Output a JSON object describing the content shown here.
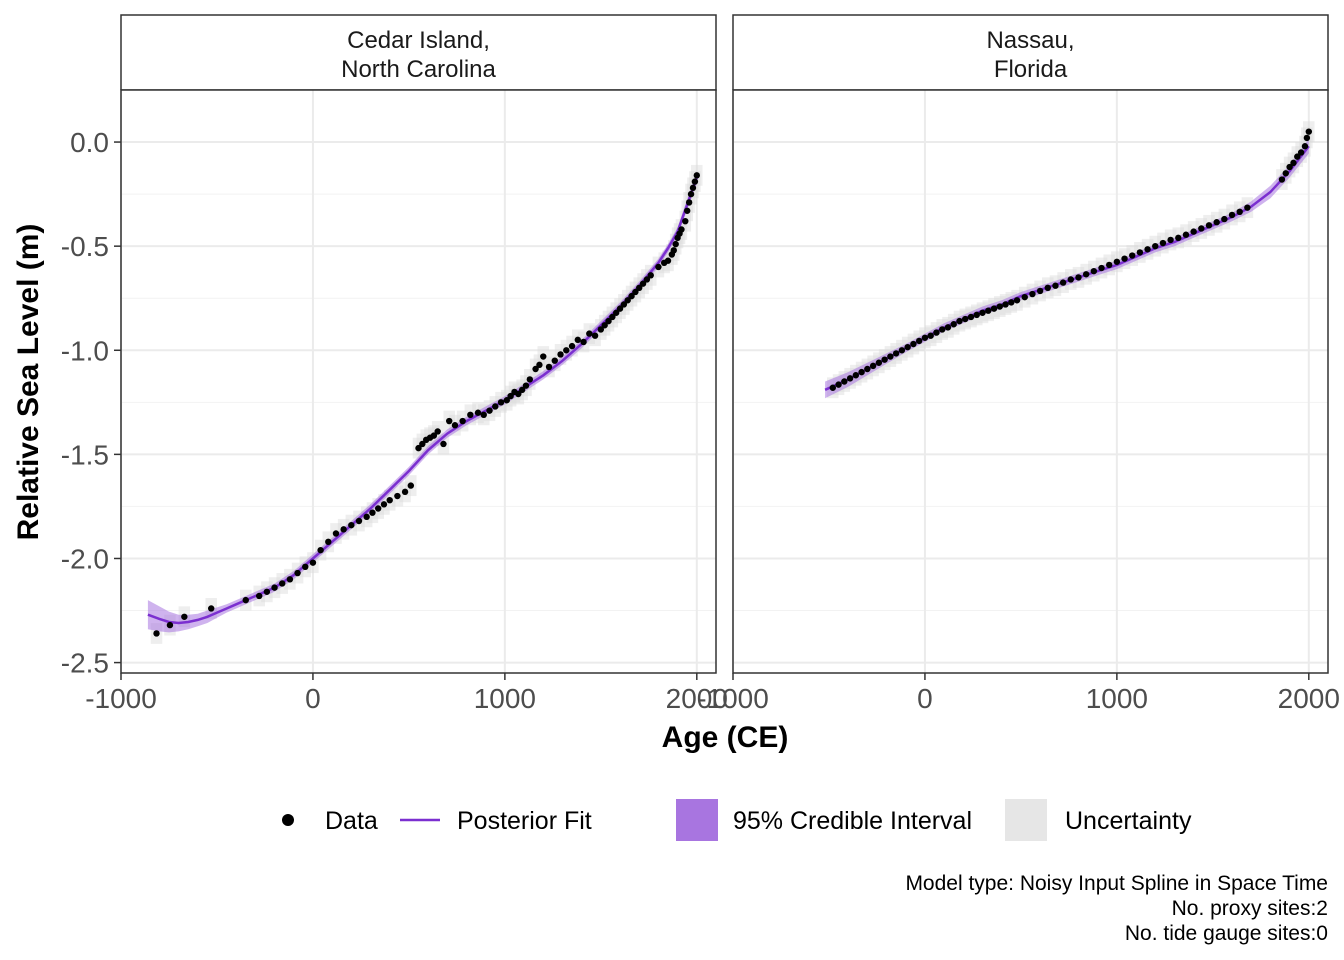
{
  "chart_data": {
    "type": "scatter",
    "xlabel": "Age (CE)",
    "ylabel": "Relative Sea Level (m)",
    "xlim": [
      -1000,
      2100
    ],
    "ylim": [
      -2.55,
      0.25
    ],
    "x_ticks": [
      -1000,
      0,
      1000,
      2000
    ],
    "x_tick_labels": [
      "-1000",
      "0",
      "1000",
      "2000"
    ],
    "y_ticks": [
      0.0,
      -0.5,
      -1.0,
      -1.5,
      -2.0,
      -2.5
    ],
    "y_tick_labels": [
      "0.0",
      "-0.5",
      "-1.0",
      "-1.5",
      "-2.0",
      "-2.5"
    ],
    "grid": true,
    "legend_position": "bottom",
    "legend": [
      {
        "label": "Data",
        "key": "point",
        "color": "#000000"
      },
      {
        "label": "Posterior Fit",
        "key": "line",
        "color": "#7b2fd0"
      },
      {
        "label": "95% Credible Interval",
        "key": "fill",
        "color": "#a875e0"
      },
      {
        "label": "Uncertainty",
        "key": "fill",
        "color": "#e6e6e6"
      }
    ],
    "caption": [
      "Model type: Noisy Input Spline in Space Time ",
      "No. proxy sites:2",
      "No. tide gauge sites:0"
    ],
    "colors": {
      "data": "#000000",
      "fit": "#7b2fd0",
      "ci": "#a875e0",
      "uncertainty": "#d9d9d9"
    },
    "panels": [
      {
        "strip": [
          "Cedar Island,",
          "North Carolina"
        ],
        "data_x": [
          -815,
          -745,
          -670,
          -530,
          -350,
          -280,
          -240,
          -200,
          -160,
          -120,
          -80,
          -40,
          0,
          40,
          80,
          120,
          160,
          200,
          240,
          280,
          310,
          340,
          370,
          400,
          440,
          480,
          510,
          550,
          570,
          590,
          610,
          630,
          650,
          680,
          710,
          740,
          780,
          820,
          860,
          890,
          920,
          950,
          980,
          1010,
          1030,
          1050,
          1070,
          1090,
          1110,
          1130,
          1160,
          1180,
          1200,
          1230,
          1260,
          1290,
          1320,
          1350,
          1380,
          1410,
          1440,
          1470,
          1500,
          1520,
          1540,
          1560,
          1580,
          1600,
          1620,
          1640,
          1660,
          1680,
          1700,
          1720,
          1740,
          1760,
          1800,
          1830,
          1850,
          1870,
          1880,
          1890,
          1900,
          1910,
          1920,
          1940,
          1950,
          1960,
          1970,
          1980,
          1990,
          2000
        ],
        "data_y": [
          -2.36,
          -2.32,
          -2.28,
          -2.24,
          -2.2,
          -2.18,
          -2.16,
          -2.14,
          -2.12,
          -2.1,
          -2.07,
          -2.04,
          -2.02,
          -1.96,
          -1.92,
          -1.88,
          -1.86,
          -1.84,
          -1.82,
          -1.8,
          -1.78,
          -1.76,
          -1.74,
          -1.72,
          -1.7,
          -1.68,
          -1.65,
          -1.47,
          -1.45,
          -1.43,
          -1.42,
          -1.41,
          -1.39,
          -1.45,
          -1.34,
          -1.36,
          -1.34,
          -1.31,
          -1.3,
          -1.31,
          -1.29,
          -1.27,
          -1.25,
          -1.24,
          -1.22,
          -1.2,
          -1.21,
          -1.19,
          -1.17,
          -1.14,
          -1.09,
          -1.07,
          -1.03,
          -1.08,
          -1.05,
          -1.02,
          -1.0,
          -0.98,
          -0.95,
          -0.96,
          -0.92,
          -0.93,
          -0.9,
          -0.88,
          -0.86,
          -0.84,
          -0.82,
          -0.8,
          -0.78,
          -0.76,
          -0.74,
          -0.72,
          -0.7,
          -0.68,
          -0.66,
          -0.64,
          -0.6,
          -0.58,
          -0.57,
          -0.54,
          -0.52,
          -0.49,
          -0.46,
          -0.44,
          -0.42,
          -0.38,
          -0.33,
          -0.29,
          -0.25,
          -0.22,
          -0.19,
          -0.16
        ],
        "fit_x": [
          -860,
          -800,
          -750,
          -700,
          -650,
          -600,
          -550,
          -500,
          -450,
          -400,
          -350,
          -300,
          -250,
          -200,
          -150,
          -100,
          -50,
          0,
          100,
          200,
          300,
          400,
          500,
          600,
          700,
          800,
          900,
          1000,
          1100,
          1200,
          1300,
          1400,
          1500,
          1600,
          1700,
          1800,
          1850,
          1900,
          1950,
          2000
        ],
        "fit_y": [
          -2.27,
          -2.29,
          -2.305,
          -2.31,
          -2.305,
          -2.295,
          -2.28,
          -2.26,
          -2.24,
          -2.22,
          -2.2,
          -2.18,
          -2.16,
          -2.14,
          -2.11,
          -2.08,
          -2.04,
          -2.0,
          -1.92,
          -1.84,
          -1.76,
          -1.67,
          -1.58,
          -1.48,
          -1.4,
          -1.34,
          -1.29,
          -1.24,
          -1.18,
          -1.12,
          -1.05,
          -0.97,
          -0.88,
          -0.79,
          -0.69,
          -0.58,
          -0.51,
          -0.43,
          -0.3,
          -0.17
        ],
        "ci_width": [
          0.07,
          0.06,
          0.05,
          0.04,
          0.035,
          0.03,
          0.03,
          0.025,
          0.02,
          0.02,
          0.02,
          0.02,
          0.02,
          0.02,
          0.02,
          0.02,
          0.02,
          0.02,
          0.02,
          0.02,
          0.02,
          0.02,
          0.02,
          0.02,
          0.02,
          0.02,
          0.02,
          0.02,
          0.02,
          0.02,
          0.02,
          0.02,
          0.02,
          0.02,
          0.02,
          0.02,
          0.02,
          0.02,
          0.025,
          0.03
        ]
      },
      {
        "strip": [
          "Nassau,",
          "Florida"
        ],
        "data_x": [
          -480,
          -450,
          -420,
          -390,
          -360,
          -330,
          -300,
          -270,
          -240,
          -210,
          -180,
          -150,
          -120,
          -90,
          -60,
          -30,
          0,
          30,
          60,
          90,
          120,
          150,
          180,
          210,
          240,
          270,
          300,
          330,
          360,
          390,
          420,
          450,
          480,
          520,
          560,
          600,
          640,
          680,
          720,
          760,
          800,
          840,
          880,
          920,
          960,
          1000,
          1040,
          1080,
          1120,
          1160,
          1200,
          1240,
          1280,
          1320,
          1360,
          1400,
          1440,
          1480,
          1520,
          1560,
          1600,
          1640,
          1680,
          1860,
          1880,
          1900,
          1920,
          1940,
          1960,
          1980,
          1990,
          2000
        ],
        "data_y": [
          -1.18,
          -1.165,
          -1.15,
          -1.135,
          -1.12,
          -1.105,
          -1.09,
          -1.075,
          -1.06,
          -1.045,
          -1.03,
          -1.015,
          -1.0,
          -0.985,
          -0.97,
          -0.955,
          -0.94,
          -0.93,
          -0.915,
          -0.9,
          -0.89,
          -0.875,
          -0.86,
          -0.85,
          -0.84,
          -0.83,
          -0.82,
          -0.81,
          -0.8,
          -0.79,
          -0.78,
          -0.77,
          -0.76,
          -0.745,
          -0.73,
          -0.715,
          -0.7,
          -0.69,
          -0.675,
          -0.66,
          -0.65,
          -0.635,
          -0.62,
          -0.605,
          -0.59,
          -0.575,
          -0.56,
          -0.545,
          -0.53,
          -0.515,
          -0.5,
          -0.485,
          -0.47,
          -0.46,
          -0.445,
          -0.43,
          -0.415,
          -0.4,
          -0.385,
          -0.37,
          -0.35,
          -0.335,
          -0.315,
          -0.18,
          -0.15,
          -0.12,
          -0.1,
          -0.07,
          -0.05,
          -0.02,
          0.02,
          0.05
        ],
        "fit_x": [
          -520,
          -400,
          -300,
          -200,
          -100,
          0,
          100,
          200,
          300,
          400,
          500,
          600,
          700,
          800,
          900,
          1000,
          1100,
          1200,
          1300,
          1400,
          1500,
          1600,
          1700,
          1800,
          1900,
          2000
        ],
        "fit_y": [
          -1.19,
          -1.14,
          -1.09,
          -1.04,
          -0.99,
          -0.94,
          -0.89,
          -0.85,
          -0.81,
          -0.78,
          -0.74,
          -0.71,
          -0.68,
          -0.65,
          -0.62,
          -0.59,
          -0.55,
          -0.51,
          -0.48,
          -0.44,
          -0.4,
          -0.36,
          -0.31,
          -0.24,
          -0.14,
          -0.02
        ],
        "ci_width": [
          0.04,
          0.035,
          0.03,
          0.025,
          0.02,
          0.02,
          0.02,
          0.02,
          0.02,
          0.02,
          0.02,
          0.02,
          0.02,
          0.02,
          0.02,
          0.02,
          0.02,
          0.02,
          0.02,
          0.02,
          0.02,
          0.02,
          0.025,
          0.03,
          0.03,
          0.035
        ]
      }
    ]
  }
}
